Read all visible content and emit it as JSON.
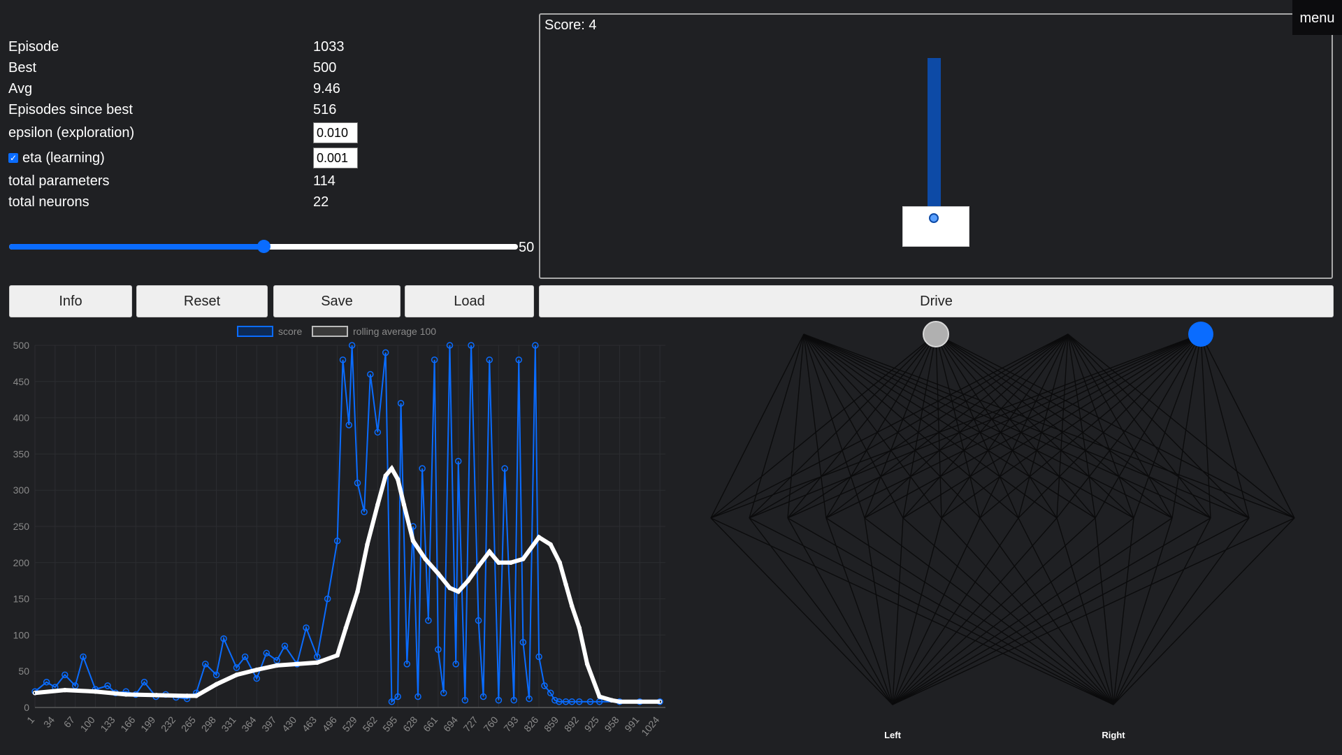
{
  "stats": [
    {
      "label": "Episode",
      "value": "1033"
    },
    {
      "label": "Best",
      "value": "500"
    },
    {
      "label": "Avg",
      "value": "9.46"
    },
    {
      "label": "Episodes since best",
      "value": "516"
    }
  ],
  "epsilon": {
    "label": "epsilon (exploration)",
    "value": "0.010"
  },
  "eta": {
    "label": "eta (learning)",
    "value": "0.001",
    "checked": true
  },
  "stats2": [
    {
      "label": "total parameters",
      "value": "114"
    },
    {
      "label": "total neurons",
      "value": "22"
    }
  ],
  "slider": {
    "value": 50,
    "min": 0,
    "max": 100,
    "value_label": "50"
  },
  "game": {
    "score_text": "Score: 4"
  },
  "menu_label": "menu",
  "buttons": {
    "info": "Info",
    "reset": "Reset",
    "save": "Save",
    "load": "Load",
    "drive": "Drive"
  },
  "colors": {
    "accent": "#0a6cff",
    "bg": "#1f2023",
    "avg_line": "#ffffff"
  },
  "chart_data": {
    "type": "line",
    "ylim": [
      0,
      500
    ],
    "y_ticks": [
      0,
      50,
      100,
      150,
      200,
      250,
      300,
      350,
      400,
      450,
      500
    ],
    "x_ticks": [
      "1",
      "34",
      "67",
      "100",
      "133",
      "166",
      "199",
      "232",
      "265",
      "298",
      "331",
      "364",
      "397",
      "430",
      "463",
      "496",
      "529",
      "562",
      "595",
      "628",
      "661",
      "694",
      "727",
      "760",
      "793",
      "826",
      "859",
      "892",
      "925",
      "958",
      "991",
      "1024"
    ],
    "legend": [
      "score",
      "rolling average 100"
    ],
    "series": [
      {
        "name": "score",
        "x": [
          1,
          20,
          34,
          50,
          67,
          80,
          100,
          120,
          133,
          150,
          166,
          180,
          199,
          215,
          232,
          250,
          265,
          280,
          298,
          310,
          331,
          345,
          364,
          380,
          397,
          410,
          430,
          445,
          463,
          480,
          496,
          505,
          515,
          520,
          529,
          540,
          550,
          562,
          575,
          585,
          595,
          600,
          610,
          620,
          628,
          635,
          645,
          655,
          661,
          670,
          680,
          690,
          694,
          705,
          715,
          727,
          735,
          745,
          760,
          770,
          785,
          793,
          800,
          810,
          820,
          826,
          835,
          845,
          852,
          859,
          870,
          880,
          892,
          910,
          925,
          958,
          991,
          1024
        ],
        "y": [
          22,
          35,
          28,
          45,
          30,
          70,
          25,
          30,
          20,
          22,
          18,
          35,
          15,
          18,
          14,
          12,
          20,
          60,
          45,
          95,
          55,
          70,
          40,
          75,
          65,
          85,
          60,
          110,
          70,
          150,
          230,
          480,
          390,
          500,
          310,
          270,
          460,
          380,
          490,
          8,
          15,
          420,
          60,
          250,
          15,
          330,
          120,
          480,
          80,
          20,
          500,
          60,
          340,
          10,
          500,
          120,
          15,
          480,
          10,
          330,
          10,
          480,
          90,
          12,
          500,
          70,
          30,
          20,
          10,
          8,
          8,
          8,
          8,
          8,
          8,
          8,
          8,
          8
        ]
      },
      {
        "name": "rolling average 100",
        "x": [
          1,
          50,
          100,
          150,
          200,
          250,
          265,
          298,
          331,
          364,
          397,
          430,
          463,
          496,
          510,
          529,
          545,
          562,
          575,
          585,
          595,
          605,
          620,
          640,
          661,
          680,
          694,
          710,
          727,
          745,
          760,
          780,
          800,
          826,
          845,
          860,
          870,
          880,
          892,
          905,
          925,
          945,
          958,
          991,
          1024
        ],
        "y": [
          20,
          24,
          22,
          18,
          17,
          16,
          16,
          32,
          45,
          52,
          58,
          60,
          62,
          72,
          110,
          160,
          225,
          280,
          320,
          330,
          315,
          280,
          230,
          205,
          185,
          165,
          160,
          175,
          195,
          215,
          200,
          200,
          205,
          235,
          225,
          200,
          170,
          140,
          110,
          60,
          15,
          10,
          8,
          8,
          8
        ]
      }
    ]
  },
  "network": {
    "output_labels": [
      "Left",
      "Right"
    ]
  }
}
